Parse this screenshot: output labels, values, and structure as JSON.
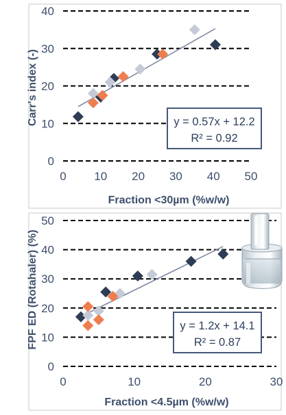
{
  "colors": {
    "series_dark": "#2e3c55",
    "series_light": "#c5cbd6",
    "series_orange": "#ee7e4e",
    "fit_line": "#7f8ba0",
    "text": "#3d4f6b"
  },
  "chart_data": [
    {
      "type": "scatter",
      "title": "",
      "xlabel": "Fraction <30µm (%w/w)",
      "ylabel": "Carr's index (-)",
      "xlim": [
        0,
        50
      ],
      "ylim": [
        0,
        40
      ],
      "xticks": [
        "0",
        "10",
        "20",
        "30",
        "40",
        "50"
      ],
      "yticks": [
        "0",
        "10",
        "20",
        "30",
        "40"
      ],
      "grid": "horizontal dashed",
      "series": [
        {
          "color": "#2e3c55",
          "points": [
            [
              4,
              11.8
            ],
            [
              10,
              17
            ],
            [
              13.5,
              22
            ],
            [
              25,
              28.5
            ],
            [
              40.5,
              31
            ]
          ]
        },
        {
          "color": "#c5cbd6",
          "points": [
            [
              8,
              18
            ],
            [
              12.5,
              21
            ],
            [
              20.5,
              24.5
            ],
            [
              35,
              35
            ]
          ]
        },
        {
          "color": "#ee7e4e",
          "points": [
            [
              8,
              15.5
            ],
            [
              10.5,
              17.5
            ],
            [
              16,
              22.5
            ],
            [
              26.5,
              28.5
            ]
          ]
        }
      ],
      "trendline": {
        "slope": 0.57,
        "intercept": 12.2,
        "x_range": [
          4,
          40.5
        ]
      },
      "equation": "y = 0.57x + 12.2",
      "r_squared": "R² = 0.92"
    },
    {
      "type": "scatter",
      "title": "",
      "xlabel": "Fraction <4.5µm (%w/w)",
      "ylabel": "FPF ED (Rotahaler) (%)",
      "xlim": [
        0,
        30
      ],
      "ylim": [
        0,
        50
      ],
      "xticks": [
        "0",
        "10",
        "20",
        "30"
      ],
      "yticks": [
        "0",
        "10",
        "20",
        "30",
        "40",
        "50"
      ],
      "grid": "horizontal dashed",
      "series": [
        {
          "color": "#2e3c55",
          "points": [
            [
              2.5,
              17
            ],
            [
              6,
              25.5
            ],
            [
              10.5,
              31
            ],
            [
              18,
              36
            ],
            [
              22.5,
              38.5
            ]
          ]
        },
        {
          "color": "#c5cbd6",
          "points": [
            [
              3.5,
              17.5
            ],
            [
              5,
              19
            ],
            [
              8,
              25
            ],
            [
              12.5,
              31.5
            ]
          ]
        },
        {
          "color": "#ee7e4e",
          "points": [
            [
              3.5,
              14
            ],
            [
              3.5,
              20.5
            ],
            [
              5,
              16
            ],
            [
              7,
              24
            ]
          ]
        }
      ],
      "trendline": {
        "slope": 1.2,
        "intercept": 14.1,
        "x_range": [
          2.5,
          22.5
        ]
      },
      "equation": "y = 1.2x + 14.1",
      "r_squared": "R² = 0.87",
      "inset_image": "glass-vial-photo"
    }
  ]
}
